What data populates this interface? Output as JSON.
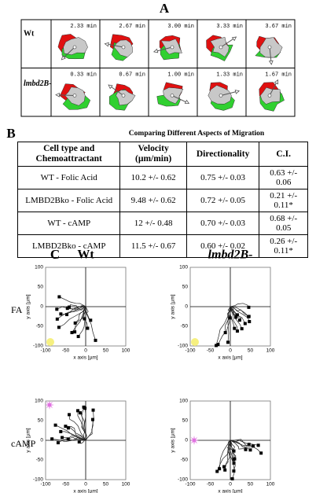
{
  "panel_a": {
    "label": "A",
    "rows": [
      {
        "label": "Wt",
        "times": [
          "2.33 min",
          "2.67 min",
          "3.00 min",
          "3.33 min",
          "3.67 min"
        ]
      },
      {
        "label": "lmbd2B-",
        "times": [
          "0.33 min",
          "0.67 min",
          "1.00 min",
          "1.33 min",
          "1.67 min"
        ]
      }
    ]
  },
  "panel_b": {
    "label": "B",
    "title": "Comparing Different Aspects of Migration",
    "table": {
      "header": [
        "Cell type and Chemoattractant",
        "Velocity (µm/min)",
        "Directionality",
        "C.I."
      ],
      "rows": [
        [
          "WT - Folic Acid",
          "10.2 +/- 0.62",
          "0.75 +/- 0.03",
          "0.63 +/- 0.06"
        ],
        [
          "LMBD2Bko - Folic Acid",
          "9.48 +/- 0.62",
          "0.72 +/- 0.05",
          "0.21 +/- 0.11*"
        ],
        [
          "WT - cAMP",
          "12 +/- 0.48",
          "0.70 +/- 0.03",
          "0.68 +/- 0.05"
        ],
        [
          "LMBD2Bko - cAMP",
          "11.5 +/- 0.67",
          "0.60 +/- 0.02",
          "0.26 +/- 0.11*"
        ]
      ]
    }
  },
  "panel_c": {
    "label": "C",
    "columns": [
      "Wt",
      "lmbd2B-"
    ],
    "rows": [
      "FA",
      "cAMP"
    ],
    "x_label": "x axis [µm]",
    "y_label": "y axis [µm]",
    "lim": [
      -100,
      100
    ],
    "ticks": [
      -100,
      -50,
      0,
      50,
      100
    ]
  }
}
